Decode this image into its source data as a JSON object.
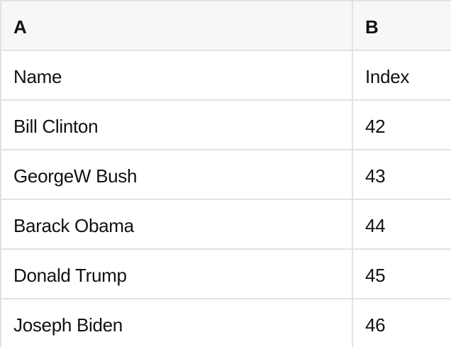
{
  "theme": {
    "header_bg": "#f7f7f7",
    "border_color": "#e2e2e2",
    "text_color": "#111111",
    "cell_bg": "#ffffff"
  },
  "table": {
    "headers": [
      "A",
      "B"
    ],
    "rows": [
      [
        "Name",
        "Index"
      ],
      [
        "Bill Clinton",
        "42"
      ],
      [
        "GeorgeW Bush",
        "43"
      ],
      [
        "Barack Obama",
        "44"
      ],
      [
        "Donald Trump",
        "45"
      ],
      [
        "Joseph Biden",
        "46"
      ]
    ]
  }
}
